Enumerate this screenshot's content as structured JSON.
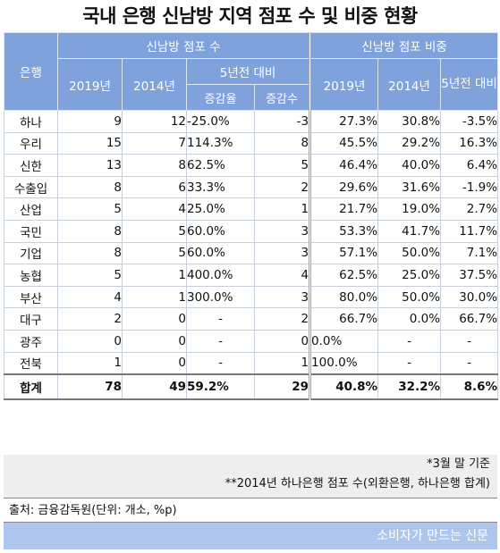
{
  "title": "국내 은행 신남방 지역 점포 수 및 비중 현황",
  "header": {
    "bank": "은행",
    "branches_group": "신남방 점포 수",
    "share_group": "신남방 점포 비중",
    "y2019": "2019년",
    "y2014": "2014년",
    "vs5y": "5년전 대비",
    "rate": "증감율",
    "count": "증감수",
    "vs5y_share": "5년전 대비"
  },
  "rows": [
    {
      "bank": "하나",
      "b2019": "9",
      "b2014": "12",
      "rate": "-25.0%",
      "diff": "-3",
      "s2019": "27.3%",
      "s2014": "30.8%",
      "sdiff": "-3.5%"
    },
    {
      "bank": "우리",
      "b2019": "15",
      "b2014": "7",
      "rate": "114.3%",
      "diff": "8",
      "s2019": "45.5%",
      "s2014": "29.2%",
      "sdiff": "16.3%"
    },
    {
      "bank": "신한",
      "b2019": "13",
      "b2014": "8",
      "rate": "62.5%",
      "diff": "5",
      "s2019": "46.4%",
      "s2014": "40.0%",
      "sdiff": "6.4%"
    },
    {
      "bank": "수출입",
      "b2019": "8",
      "b2014": "6",
      "rate": "33.3%",
      "diff": "2",
      "s2019": "29.6%",
      "s2014": "31.6%",
      "sdiff": "-1.9%"
    },
    {
      "bank": "산업",
      "b2019": "5",
      "b2014": "4",
      "rate": "25.0%",
      "diff": "1",
      "s2019": "21.7%",
      "s2014": "19.0%",
      "sdiff": "2.7%"
    },
    {
      "bank": "국민",
      "b2019": "8",
      "b2014": "5",
      "rate": "60.0%",
      "diff": "3",
      "s2019": "53.3%",
      "s2014": "41.7%",
      "sdiff": "11.7%"
    },
    {
      "bank": "기업",
      "b2019": "8",
      "b2014": "5",
      "rate": "60.0%",
      "diff": "3",
      "s2019": "57.1%",
      "s2014": "50.0%",
      "sdiff": "7.1%"
    },
    {
      "bank": "농협",
      "b2019": "5",
      "b2014": "1",
      "rate": "400.0%",
      "diff": "4",
      "s2019": "62.5%",
      "s2014": "25.0%",
      "sdiff": "37.5%"
    },
    {
      "bank": "부산",
      "b2019": "4",
      "b2014": "1",
      "rate": "300.0%",
      "diff": "3",
      "s2019": "80.0%",
      "s2014": "50.0%",
      "sdiff": "30.0%"
    },
    {
      "bank": "대구",
      "b2019": "2",
      "b2014": "0",
      "rate": "-",
      "diff": "2",
      "s2019": "66.7%",
      "s2014": "0.0%",
      "sdiff": "66.7%"
    },
    {
      "bank": "광주",
      "b2019": "0",
      "b2014": "0",
      "rate": "-",
      "diff": "0",
      "s2019": "0.0%",
      "s2014": "-",
      "sdiff": "-"
    },
    {
      "bank": "전북",
      "b2019": "1",
      "b2014": "0",
      "rate": "-",
      "diff": "1",
      "s2019": "100.0%",
      "s2014": "-",
      "sdiff": "-"
    }
  ],
  "total": {
    "bank": "합계",
    "b2019": "78",
    "b2014": "49",
    "rate": "59.2%",
    "diff": "29",
    "s2019": "40.8%",
    "s2014": "32.2%",
    "sdiff": "8.6%"
  },
  "notes": {
    "note1": "*3월 말 기준",
    "note2": "**2014년 하나은행 점포 수(외환은행, 하나은행 합계)"
  },
  "source": "출처: 금융감독원(단위: 개소, %p)",
  "footer": "소비자가 만드는 신문",
  "colors": {
    "header_bg": "#7fa2dc",
    "footer_bg": "#aec6ee",
    "notes_bg": "#eeeeee"
  }
}
